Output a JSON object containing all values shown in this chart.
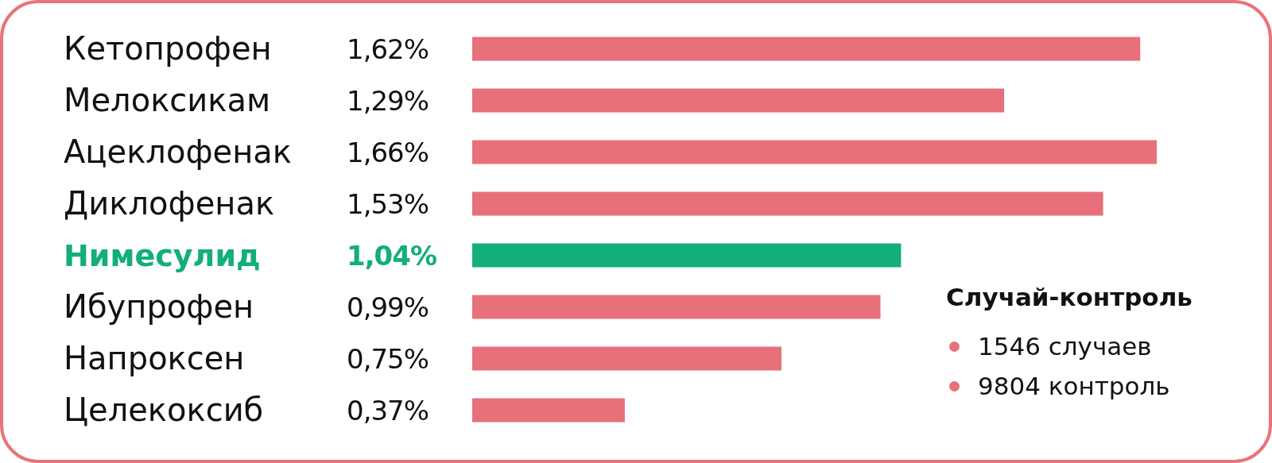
{
  "chart_data": {
    "type": "bar",
    "orientation": "horizontal",
    "categories": [
      "Кетопрофен",
      "Мелоксикам",
      "Ацеклофенак",
      "Диклофенак",
      "Нимесулид",
      "Ибупрофен",
      "Напроксен",
      "Целекоксиб"
    ],
    "values": [
      1.62,
      1.29,
      1.66,
      1.53,
      1.04,
      0.99,
      0.75,
      0.37
    ],
    "colors": [
      "#e8707a",
      "#e8707a",
      "#e8707a",
      "#e8707a",
      "#13ae7c",
      "#e8707a",
      "#e8707a",
      "#e8707a"
    ],
    "value_labels": [
      "1,62%",
      "1,29%",
      "1,66%",
      "1,53%",
      "1,04%",
      "0,99%",
      "0,75%",
      "0,37%"
    ],
    "xlim": [
      0,
      1.66
    ],
    "annotations": [
      "Случай-контроль",
      "1546 случаев",
      "9804 контроль"
    ]
  }
}
